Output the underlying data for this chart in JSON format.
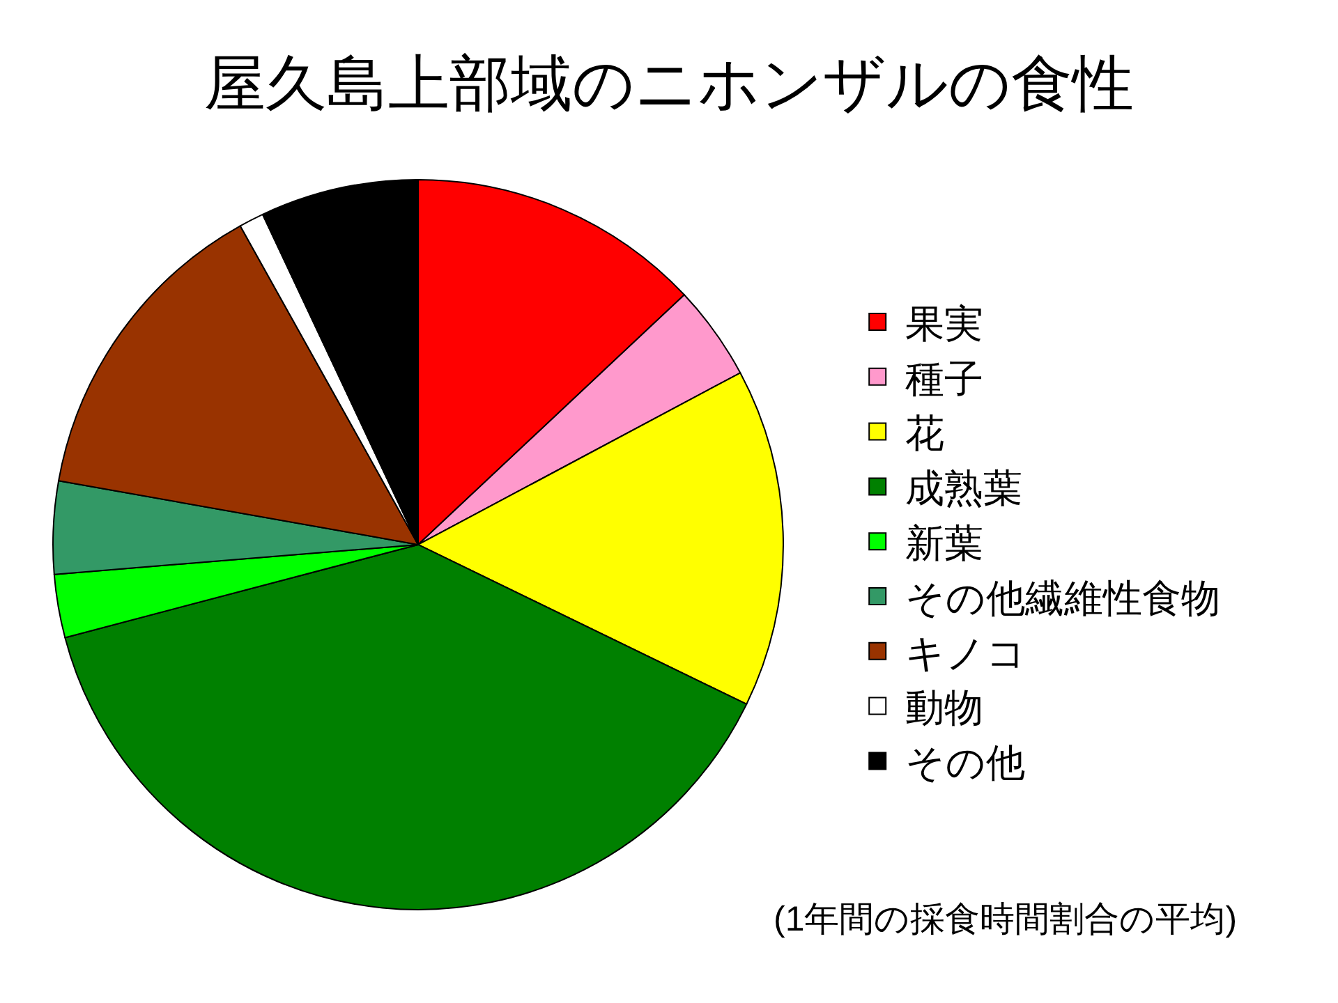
{
  "chart_data": {
    "type": "pie",
    "title": "屋久島上部域のニホンザルの食性",
    "categories": [
      "果実",
      "種子",
      "花",
      "成熟葉",
      "新葉",
      "その他繊維性食物",
      "キノコ",
      "動物",
      "その他"
    ],
    "values": [
      13.0,
      4.2,
      15.0,
      38.7,
      2.8,
      4.1,
      14.1,
      1.1,
      7.0
    ],
    "colors": [
      "#ff0000",
      "#ff99cc",
      "#ffff00",
      "#008000",
      "#00ff00",
      "#339966",
      "#993300",
      "#ffffff",
      "#000000"
    ],
    "legend": "right",
    "annotations": [
      "(1年間の採食時間割合の平均)"
    ]
  }
}
